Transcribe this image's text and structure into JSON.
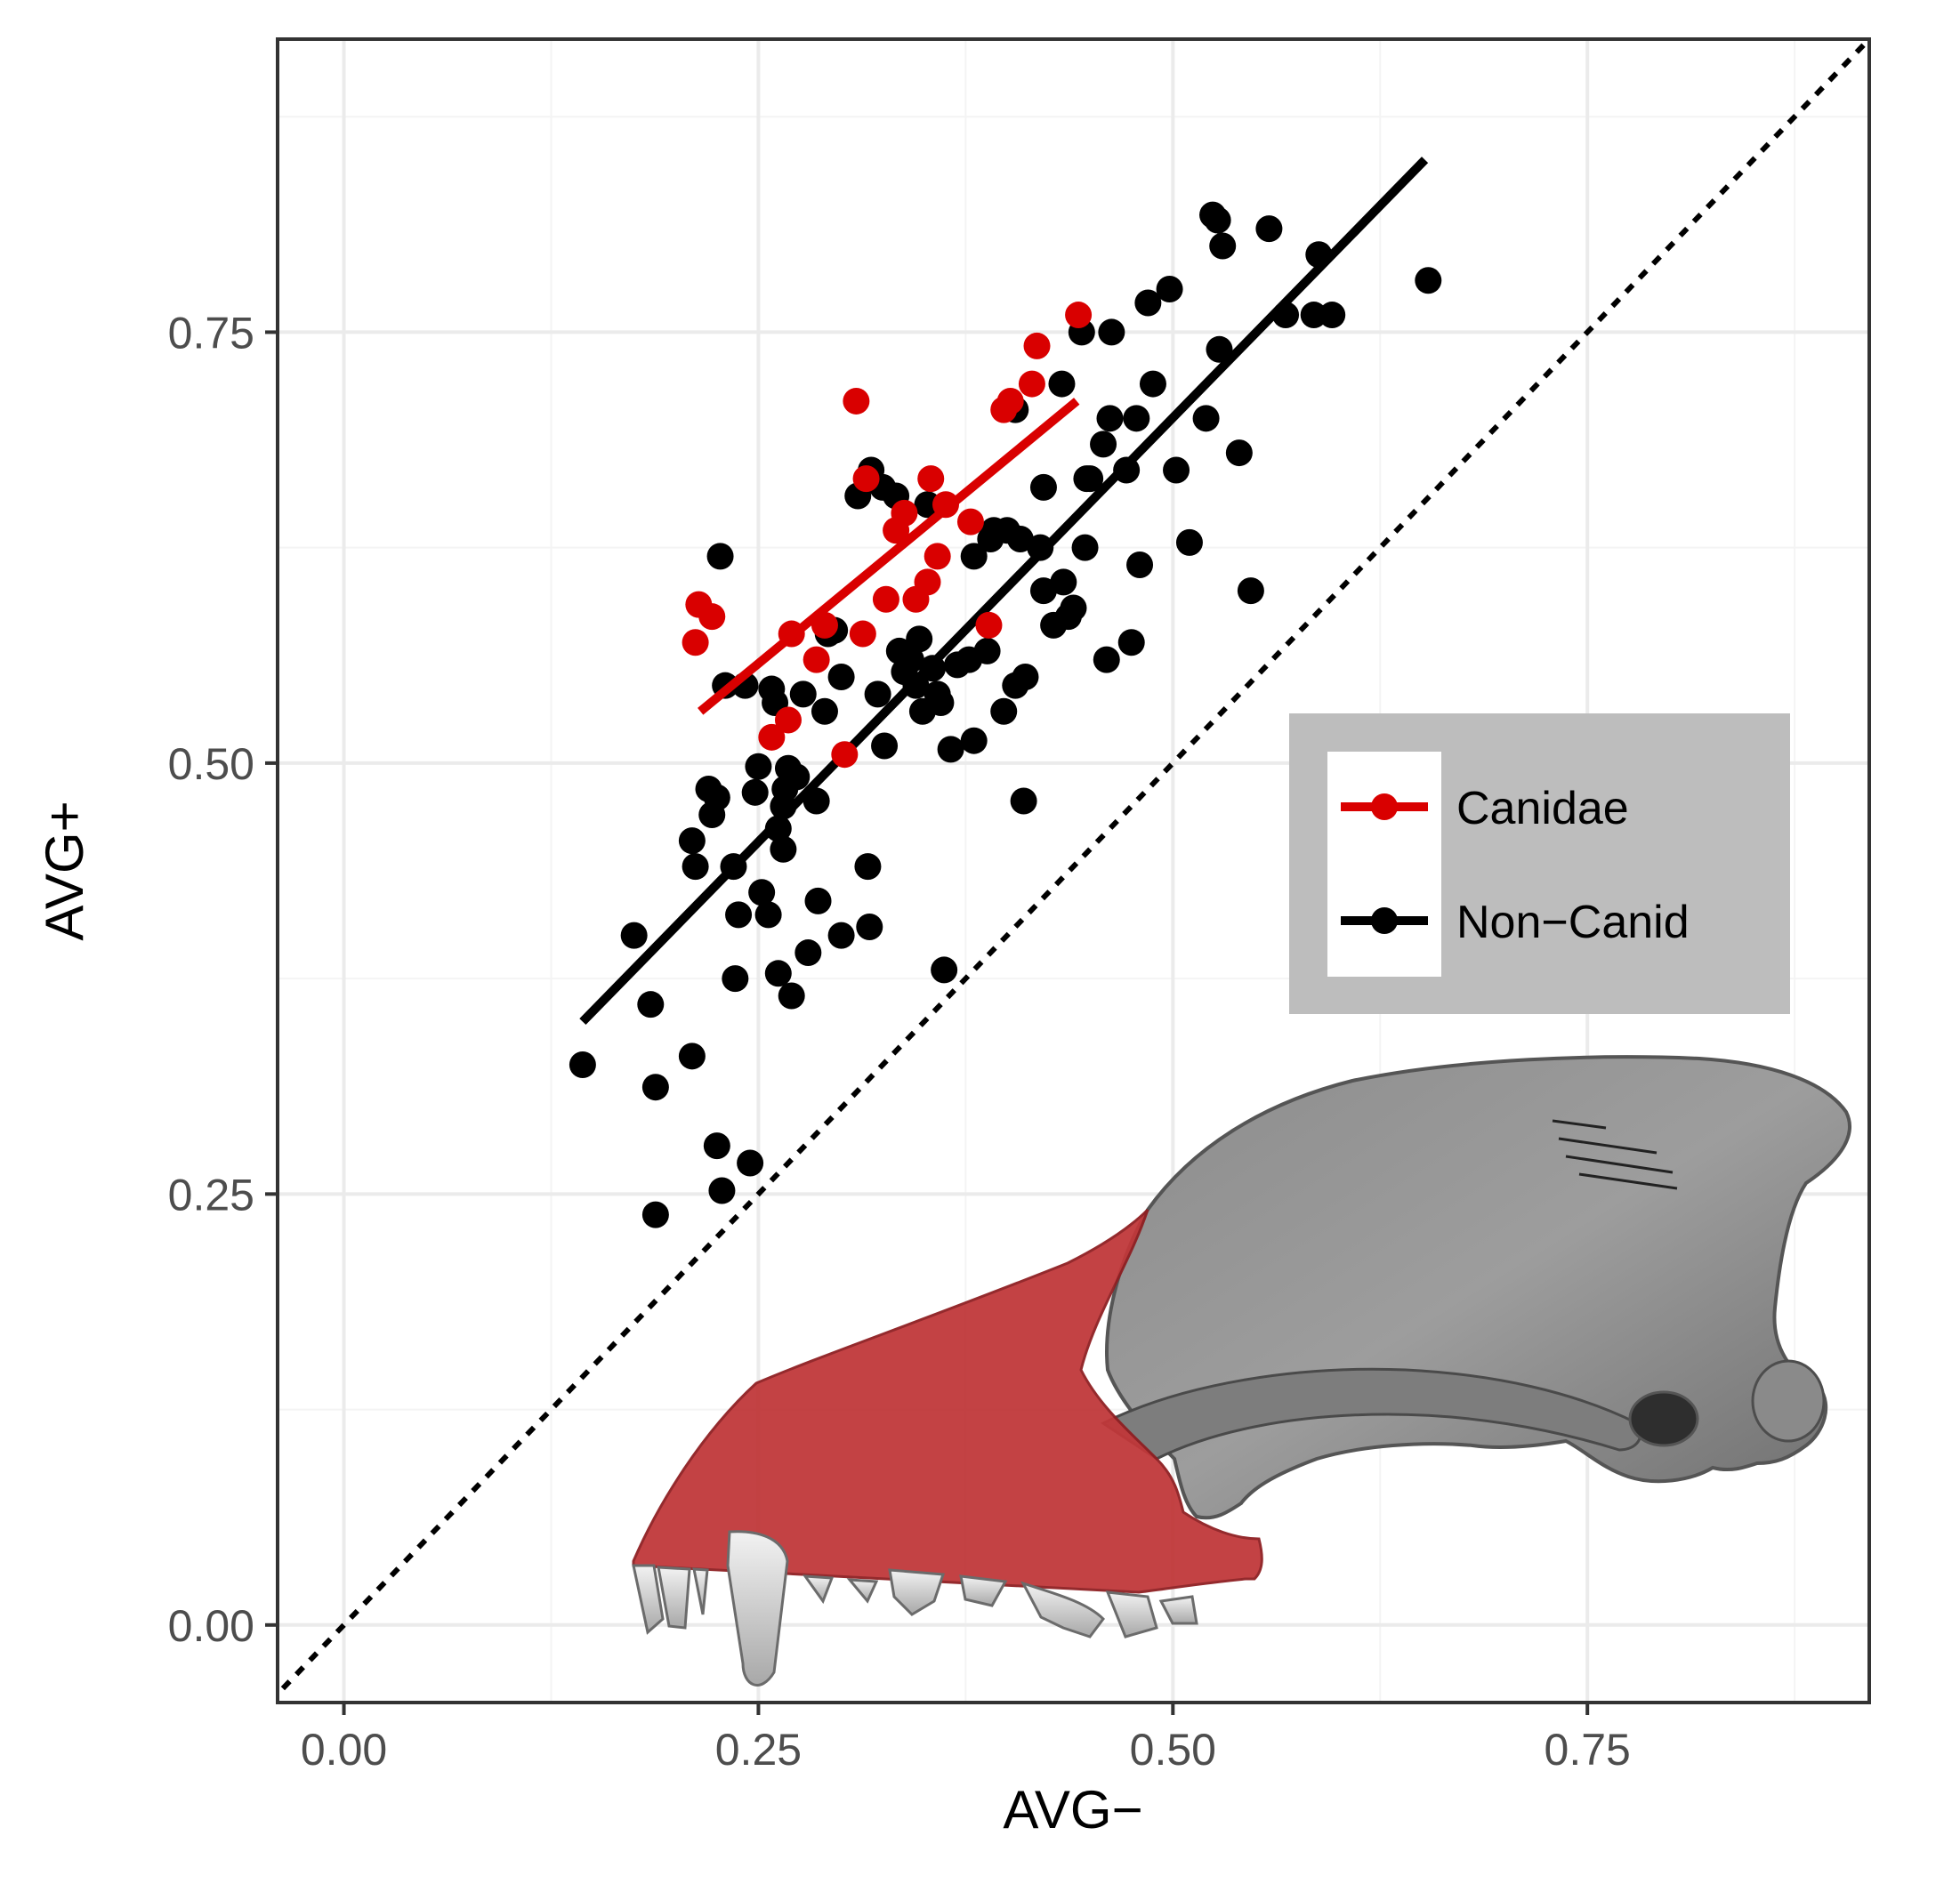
{
  "chart_data": {
    "type": "scatter",
    "xlabel": "AVG−",
    "ylabel": "AVG+",
    "xlim": [
      -0.04,
      0.92
    ],
    "ylim": [
      -0.045,
      0.92
    ],
    "x_ticks": [
      {
        "value": 0.0,
        "label": "0.00"
      },
      {
        "value": 0.25,
        "label": "0.25"
      },
      {
        "value": 0.5,
        "label": "0.50"
      },
      {
        "value": 0.75,
        "label": "0.75"
      }
    ],
    "y_ticks": [
      {
        "value": 0.0,
        "label": "0.00"
      },
      {
        "value": 0.25,
        "label": "0.25"
      },
      {
        "value": 0.5,
        "label": "0.50"
      },
      {
        "value": 0.75,
        "label": "0.75"
      }
    ],
    "grid": true,
    "reference_line": {
      "style": "dotted",
      "slope": 1,
      "intercept": 0,
      "color": "#000000"
    },
    "legend": {
      "placement": "right-middle",
      "entries": [
        {
          "label": "Canidae",
          "color": "#d90000"
        },
        {
          "label": "Non−Canid",
          "color": "#000000"
        }
      ]
    },
    "series": [
      {
        "name": "Canidae",
        "color": "#d90000",
        "fit": {
          "x0": 0.215,
          "y0": 0.53,
          "x1": 0.442,
          "y1": 0.71
        },
        "points": [
          [
            0.212,
            0.57
          ],
          [
            0.214,
            0.592
          ],
          [
            0.222,
            0.585
          ],
          [
            0.258,
            0.515
          ],
          [
            0.268,
            0.525
          ],
          [
            0.27,
            0.575
          ],
          [
            0.285,
            0.56
          ],
          [
            0.29,
            0.58
          ],
          [
            0.302,
            0.505
          ],
          [
            0.309,
            0.71
          ],
          [
            0.313,
            0.575
          ],
          [
            0.315,
            0.665
          ],
          [
            0.327,
            0.595
          ],
          [
            0.333,
            0.635
          ],
          [
            0.338,
            0.645
          ],
          [
            0.345,
            0.595
          ],
          [
            0.352,
            0.605
          ],
          [
            0.354,
            0.665
          ],
          [
            0.358,
            0.62
          ],
          [
            0.363,
            0.65
          ],
          [
            0.378,
            0.64
          ],
          [
            0.389,
            0.58
          ],
          [
            0.398,
            0.705
          ],
          [
            0.402,
            0.71
          ],
          [
            0.415,
            0.72
          ],
          [
            0.418,
            0.742
          ],
          [
            0.443,
            0.76
          ]
        ]
      },
      {
        "name": "Non−Canid",
        "color": "#000000",
        "fit": {
          "x0": 0.144,
          "y0": 0.35,
          "x1": 0.652,
          "y1": 0.85
        },
        "points": [
          [
            0.144,
            0.325
          ],
          [
            0.175,
            0.4
          ],
          [
            0.185,
            0.36
          ],
          [
            0.188,
            0.238
          ],
          [
            0.188,
            0.312
          ],
          [
            0.21,
            0.455
          ],
          [
            0.21,
            0.33
          ],
          [
            0.212,
            0.44
          ],
          [
            0.22,
            0.485
          ],
          [
            0.222,
            0.47
          ],
          [
            0.225,
            0.48
          ],
          [
            0.225,
            0.278
          ],
          [
            0.227,
            0.62
          ],
          [
            0.228,
            0.252
          ],
          [
            0.23,
            0.545
          ],
          [
            0.235,
            0.44
          ],
          [
            0.236,
            0.375
          ],
          [
            0.238,
            0.412
          ],
          [
            0.242,
            0.545
          ],
          [
            0.245,
            0.268
          ],
          [
            0.248,
            0.483
          ],
          [
            0.25,
            0.498
          ],
          [
            0.252,
            0.425
          ],
          [
            0.256,
            0.412
          ],
          [
            0.258,
            0.543
          ],
          [
            0.26,
            0.535
          ],
          [
            0.262,
            0.462
          ],
          [
            0.262,
            0.378
          ],
          [
            0.265,
            0.475
          ],
          [
            0.265,
            0.45
          ],
          [
            0.266,
            0.485
          ],
          [
            0.268,
            0.497
          ],
          [
            0.27,
            0.365
          ],
          [
            0.273,
            0.492
          ],
          [
            0.277,
            0.54
          ],
          [
            0.28,
            0.39
          ],
          [
            0.285,
            0.478
          ],
          [
            0.286,
            0.42
          ],
          [
            0.29,
            0.53
          ],
          [
            0.292,
            0.575
          ],
          [
            0.296,
            0.577
          ],
          [
            0.3,
            0.4
          ],
          [
            0.3,
            0.55
          ],
          [
            0.31,
            0.655
          ],
          [
            0.316,
            0.44
          ],
          [
            0.317,
            0.405
          ],
          [
            0.318,
            0.67
          ],
          [
            0.322,
            0.54
          ],
          [
            0.325,
            0.66
          ],
          [
            0.326,
            0.51
          ],
          [
            0.333,
            0.655
          ],
          [
            0.335,
            0.565
          ],
          [
            0.338,
            0.553
          ],
          [
            0.342,
            0.56
          ],
          [
            0.345,
            0.545
          ],
          [
            0.347,
            0.572
          ],
          [
            0.349,
            0.53
          ],
          [
            0.352,
            0.65
          ],
          [
            0.355,
            0.555
          ],
          [
            0.358,
            0.54
          ],
          [
            0.36,
            0.535
          ],
          [
            0.362,
            0.38
          ],
          [
            0.366,
            0.508
          ],
          [
            0.37,
            0.557
          ],
          [
            0.377,
            0.56
          ],
          [
            0.38,
            0.513
          ],
          [
            0.38,
            0.62
          ],
          [
            0.388,
            0.565
          ],
          [
            0.39,
            0.63
          ],
          [
            0.392,
            0.635
          ],
          [
            0.398,
            0.53
          ],
          [
            0.4,
            0.635
          ],
          [
            0.405,
            0.545
          ],
          [
            0.405,
            0.705
          ],
          [
            0.408,
            0.63
          ],
          [
            0.41,
            0.478
          ],
          [
            0.411,
            0.55
          ],
          [
            0.42,
            0.625
          ],
          [
            0.422,
            0.66
          ],
          [
            0.422,
            0.6
          ],
          [
            0.428,
            0.58
          ],
          [
            0.433,
            0.72
          ],
          [
            0.434,
            0.605
          ],
          [
            0.437,
            0.585
          ],
          [
            0.44,
            0.59
          ],
          [
            0.445,
            0.75
          ],
          [
            0.447,
            0.625
          ],
          [
            0.448,
            0.665
          ],
          [
            0.45,
            0.665
          ],
          [
            0.458,
            0.685
          ],
          [
            0.46,
            0.56
          ],
          [
            0.462,
            0.7
          ],
          [
            0.463,
            0.75
          ],
          [
            0.472,
            0.67
          ],
          [
            0.475,
            0.57
          ],
          [
            0.478,
            0.7
          ],
          [
            0.48,
            0.615
          ],
          [
            0.485,
            0.767
          ],
          [
            0.488,
            0.72
          ],
          [
            0.498,
            0.775
          ],
          [
            0.502,
            0.67
          ],
          [
            0.51,
            0.628
          ],
          [
            0.52,
            0.7
          ],
          [
            0.524,
            0.818
          ],
          [
            0.527,
            0.815
          ],
          [
            0.528,
            0.74
          ],
          [
            0.53,
            0.8
          ],
          [
            0.54,
            0.68
          ],
          [
            0.547,
            0.6
          ],
          [
            0.558,
            0.81
          ],
          [
            0.568,
            0.76
          ],
          [
            0.585,
            0.76
          ],
          [
            0.588,
            0.795
          ],
          [
            0.596,
            0.76
          ],
          [
            0.654,
            0.78
          ]
        ]
      }
    ]
  },
  "colors": {
    "panel_border": "#333333",
    "grid_major": "#ebebeb",
    "grid_minor": "#f4f4f4",
    "legend_bg": "#bdbdbd",
    "skull_highlight": "#c0383a"
  },
  "icons": {
    "inset_image": "skull-icon"
  }
}
